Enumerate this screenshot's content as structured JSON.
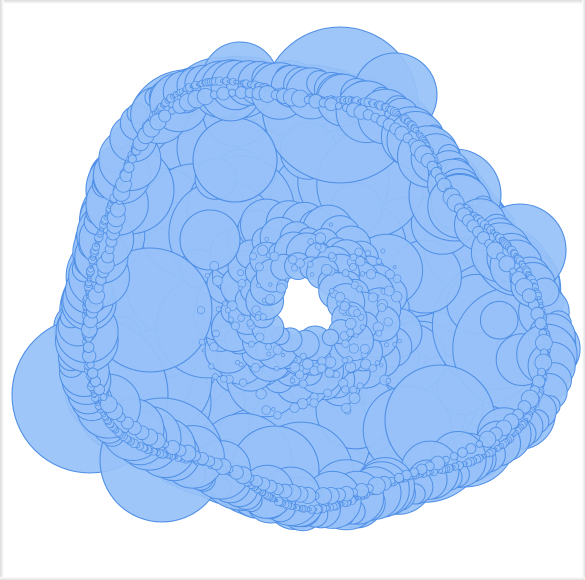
{
  "image": {
    "subject": "circle-packing-ring",
    "background_color": "#ffffff",
    "frame_shadow_color": "#dcdcdc"
  },
  "style": {
    "fill_color": "#97c1f7",
    "stroke_color": "#4f8fe6",
    "fill_opacity": 0.92,
    "stroke_width_hint": "thin"
  }
}
